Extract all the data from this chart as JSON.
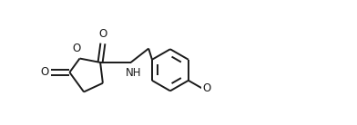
{
  "bg_color": "#ffffff",
  "line_color": "#1a1a1a",
  "line_width": 1.4,
  "font_size": 8.5,
  "fig_width": 3.92,
  "fig_height": 1.38,
  "dpi": 100,
  "xlim": [
    -0.05,
    4.3
  ],
  "ylim": [
    -0.72,
    0.78
  ]
}
